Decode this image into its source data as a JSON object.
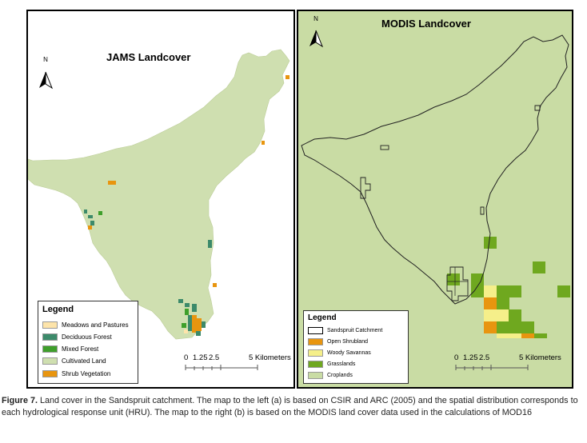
{
  "left_map": {
    "title": "JAMS Landcover",
    "north_label": "N",
    "legend": {
      "title": "Legend",
      "items": [
        {
          "label": "Meadows and Pastures",
          "color": "#fde4aa"
        },
        {
          "label": "Deciduous Forest",
          "color": "#3c8a6a"
        },
        {
          "label": "Mixed Forest",
          "color": "#3f9f2b"
        },
        {
          "label": "Cultivated Land",
          "color": "#cfdfb0"
        },
        {
          "label": "Shrub Vegetation",
          "color": "#e8950f"
        }
      ]
    },
    "scale": {
      "labels": [
        "0",
        "1.25",
        "2.5",
        "5 Kilometers"
      ]
    }
  },
  "right_map": {
    "title": "MODIS Landcover",
    "north_label": "N",
    "legend": {
      "title": "Legend",
      "items": [
        {
          "label": "Sandspruit Catchment",
          "color": "#ffffff"
        },
        {
          "label": "Open Shrubland",
          "color": "#e8950f"
        },
        {
          "label": "Woody Savannas",
          "color": "#f5ef8a"
        },
        {
          "label": "Grasslands",
          "color": "#6fa81f"
        },
        {
          "label": "Croplands",
          "color": "#c9dca4"
        }
      ]
    },
    "scale": {
      "labels": [
        "0",
        "1.25",
        "2.5",
        "5 Kilometers"
      ]
    }
  },
  "caption": {
    "label": "Figure 7.",
    "text": " Land cover in the Sandspruit catchment. The map to the left (a) is based on CSIR and ARC (2005) and the spatial distribution corresponds to each hydrological response unit (HRU). The map to the right (b) is based on the MODIS land cover data used in the calculations of MOD16"
  }
}
